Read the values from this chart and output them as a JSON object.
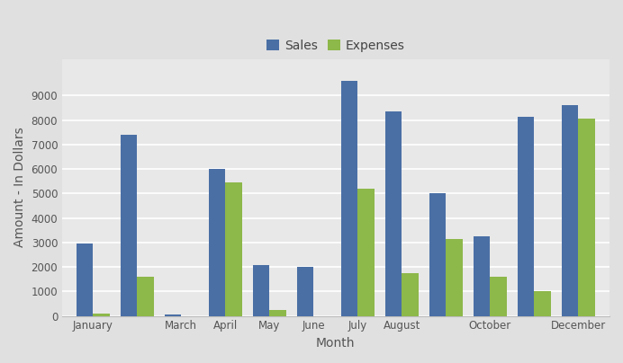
{
  "months_indices": [
    0,
    1,
    2,
    3,
    4,
    5,
    6,
    7,
    8,
    9,
    10,
    11
  ],
  "x_tick_positions": [
    0,
    1,
    2,
    3,
    4,
    5,
    6,
    7,
    8,
    9,
    10,
    11
  ],
  "x_tick_labels": [
    "January",
    "",
    "March",
    "April",
    "May",
    "June",
    "July",
    "August",
    "",
    "October",
    "",
    "December"
  ],
  "sales": [
    2950,
    7400,
    50,
    6000,
    2080,
    2020,
    9600,
    8350,
    5000,
    3270,
    8120,
    8600
  ],
  "expenses": [
    80,
    1600,
    0,
    5450,
    250,
    0,
    5200,
    1750,
    3150,
    1600,
    1000,
    8050
  ],
  "bar_color_sales": "#4a6fa5",
  "bar_color_expenses": "#8db84a",
  "xlabel": "Month",
  "ylabel": "Amount - In Dollars",
  "legend_sales": "Sales",
  "legend_expenses": "Expenses",
  "ylim": [
    0,
    10500
  ],
  "yticks": [
    0,
    1000,
    2000,
    3000,
    4000,
    5000,
    6000,
    7000,
    8000,
    9000
  ],
  "background_color": "#e0e0e0",
  "plot_bg_color": "#e8e8e8",
  "grid_color": "#ffffff",
  "bar_width": 0.38
}
